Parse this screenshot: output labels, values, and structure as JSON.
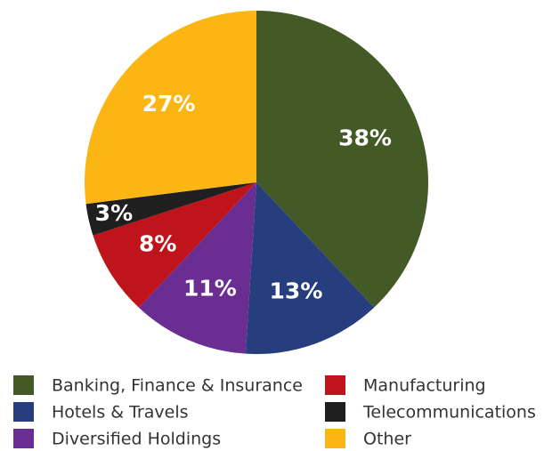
{
  "chart_data": {
    "type": "pie",
    "categories": [
      "Banking, Finance & Insurance",
      "Hotels & Travels",
      "Diversified Holdings",
      "Manufacturing",
      "Telecommunications",
      "Other"
    ],
    "values": [
      38,
      13,
      11,
      8,
      3,
      27
    ],
    "value_labels": [
      "38%",
      "13%",
      "11%",
      "8%",
      "3%",
      "27%"
    ],
    "colors": [
      "#435a27",
      "#263d7e",
      "#6a2d91",
      "#c0141c",
      "#1f1f1f",
      "#fbb614"
    ],
    "legend": "bottom"
  }
}
